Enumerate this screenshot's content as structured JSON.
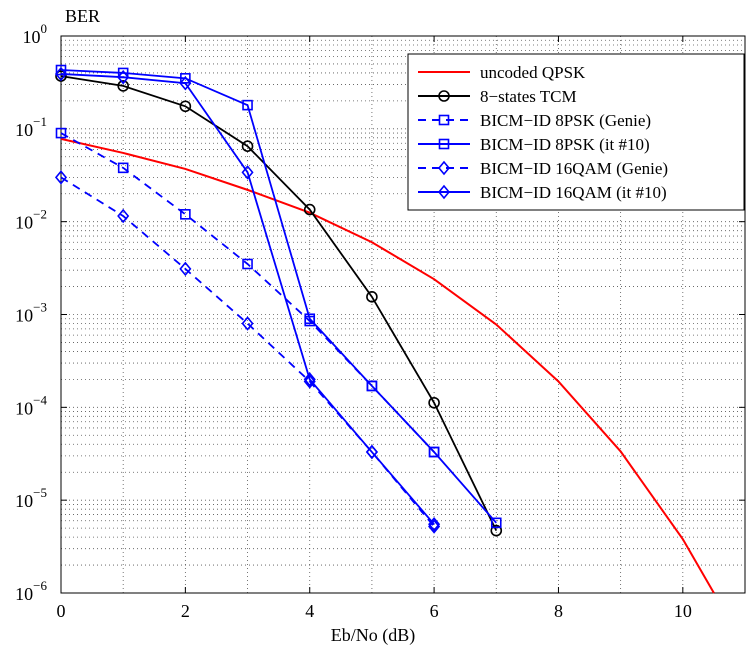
{
  "chart_data": {
    "type": "line",
    "xlabel": "Eb/No (dB)",
    "ylabel": "BER",
    "xlim": [
      0,
      11
    ],
    "ylim_exp": [
      -6,
      0
    ],
    "yscale": "log",
    "x_ticks": [
      0,
      2,
      4,
      6,
      8,
      10
    ],
    "y_ticks": [
      {
        "base": "10",
        "exp": "0"
      },
      {
        "base": "10",
        "exp": "−1"
      },
      {
        "base": "10",
        "exp": "−2"
      },
      {
        "base": "10",
        "exp": "−3"
      },
      {
        "base": "10",
        "exp": "−4"
      },
      {
        "base": "10",
        "exp": "−5"
      },
      {
        "base": "10",
        "exp": "−6"
      }
    ],
    "grid": true,
    "legend_position": "top-right",
    "series": [
      {
        "name": "uncoded QPSK",
        "color": "#ff0000",
        "dash": "solid",
        "marker": "none",
        "x": [
          0,
          1,
          2,
          3,
          4,
          5,
          6,
          7,
          8,
          9,
          10,
          10.5
        ],
        "y": [
          0.078,
          0.055,
          0.037,
          0.022,
          0.0125,
          0.006,
          0.0024,
          0.00078,
          0.00019,
          3.35e-05,
          3.8e-06,
          1e-06
        ]
      },
      {
        "name": "8−states TCM",
        "color": "#000000",
        "dash": "solid",
        "marker": "circle",
        "x": [
          0,
          1,
          2,
          3,
          4,
          5,
          6,
          7
        ],
        "y": [
          0.37,
          0.29,
          0.175,
          0.065,
          0.0135,
          0.00155,
          0.000112,
          4.7e-06
        ]
      },
      {
        "name": "BICM−ID 8PSK (Genie)",
        "color": "#0000ff",
        "dash": "dashed",
        "marker": "square",
        "x": [
          0,
          1,
          2,
          3,
          4,
          5,
          6
        ],
        "y": [
          0.09,
          0.038,
          0.012,
          0.0035,
          0.00085,
          0.00017,
          3.3e-05
        ]
      },
      {
        "name": "BICM−ID 8PSK (it #10)",
        "color": "#0000ff",
        "dash": "solid",
        "marker": "square",
        "x": [
          0,
          1,
          2,
          3,
          4,
          5,
          6,
          7
        ],
        "y": [
          0.43,
          0.4,
          0.35,
          0.18,
          0.0009,
          0.00017,
          3.3e-05,
          5.7e-06
        ]
      },
      {
        "name": "BICM−ID 16QAM (Genie)",
        "color": "#0000ff",
        "dash": "dashed",
        "marker": "diamond",
        "x": [
          0,
          1,
          2,
          3,
          4,
          5,
          6
        ],
        "y": [
          0.03,
          0.0115,
          0.0031,
          0.0008,
          0.00019,
          3.3e-05,
          5.2e-06
        ]
      },
      {
        "name": "BICM−ID 16QAM (it #10)",
        "color": "#0000ff",
        "dash": "solid",
        "marker": "diamond",
        "x": [
          0,
          1,
          2,
          3,
          4,
          5,
          6
        ],
        "y": [
          0.39,
          0.36,
          0.31,
          0.034,
          0.0002,
          3.3e-05,
          5.5e-06
        ]
      }
    ]
  }
}
